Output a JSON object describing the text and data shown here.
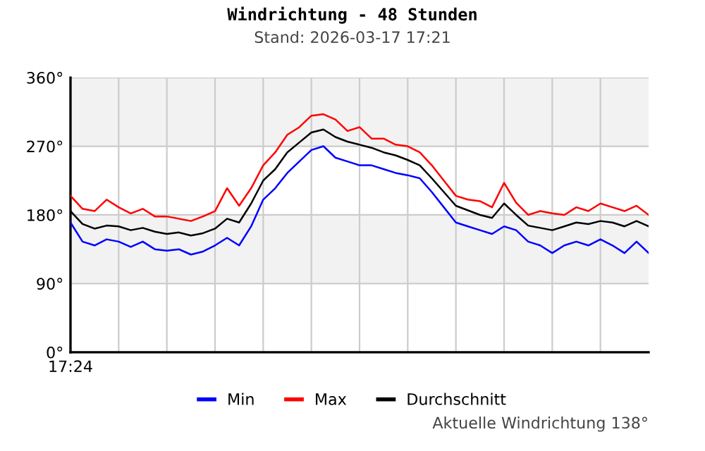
{
  "chart_data": {
    "type": "line",
    "title": "Windrichtung - 48 Stunden",
    "subtitle": "Stand: 2026-03-17 17:21",
    "annotations": [
      "Aktuelle Windrichtung 138°"
    ],
    "categories": [
      "17:24",
      null,
      null,
      null,
      null,
      null,
      null,
      null,
      null,
      null,
      null,
      null,
      null,
      null,
      null,
      null,
      null,
      null,
      null,
      null,
      null,
      null,
      null,
      null,
      null,
      null,
      null,
      null,
      null,
      null,
      null,
      null,
      null,
      null,
      null,
      null,
      null,
      null,
      null,
      null,
      null,
      null,
      null,
      null,
      null,
      null,
      null,
      null,
      null
    ],
    "series": [
      {
        "name": "Min",
        "color": "#0000ff",
        "values": [
          170,
          145,
          140,
          148,
          145,
          138,
          145,
          135,
          133,
          135,
          128,
          132,
          140,
          150,
          140,
          165,
          200,
          215,
          235,
          250,
          265,
          270,
          255,
          250,
          245,
          245,
          240,
          235,
          232,
          228,
          210,
          190,
          170,
          165,
          160,
          155,
          165,
          160,
          145,
          140,
          130,
          140,
          145,
          140,
          148,
          140,
          130,
          145,
          130
        ]
      },
      {
        "name": "Max",
        "color": "#ff0000",
        "values": [
          205,
          188,
          185,
          200,
          190,
          182,
          188,
          178,
          178,
          175,
          172,
          178,
          185,
          215,
          192,
          215,
          245,
          262,
          285,
          295,
          310,
          312,
          305,
          290,
          295,
          280,
          280,
          272,
          270,
          262,
          245,
          225,
          205,
          200,
          198,
          190,
          222,
          196,
          180,
          185,
          182,
          180,
          190,
          185,
          195,
          190,
          185,
          192,
          180
        ]
      },
      {
        "name": "Durchschnitt",
        "color": "#000000",
        "values": [
          185,
          168,
          162,
          166,
          165,
          160,
          163,
          158,
          155,
          157,
          153,
          156,
          162,
          175,
          170,
          195,
          225,
          240,
          262,
          275,
          288,
          292,
          282,
          276,
          272,
          268,
          262,
          258,
          252,
          245,
          228,
          210,
          192,
          186,
          180,
          176,
          195,
          180,
          166,
          163,
          160,
          165,
          170,
          168,
          172,
          170,
          165,
          172,
          165
        ]
      }
    ],
    "ylim": [
      0,
      360
    ],
    "yticks": [
      {
        "value": 0,
        "label": "0°"
      },
      {
        "value": 90,
        "label": "90°"
      },
      {
        "value": 180,
        "label": "180°"
      },
      {
        "value": 270,
        "label": "270°"
      },
      {
        "value": 360,
        "label": "360°"
      }
    ],
    "bands": [
      {
        "axis": "y",
        "from": 90,
        "to": 180,
        "color": "#f2f2f2"
      },
      {
        "axis": "y",
        "from": 270,
        "to": 360,
        "color": "#f2f2f2"
      }
    ],
    "grid": true,
    "legend": "bottom",
    "line_style": "solid",
    "marker": "none"
  }
}
